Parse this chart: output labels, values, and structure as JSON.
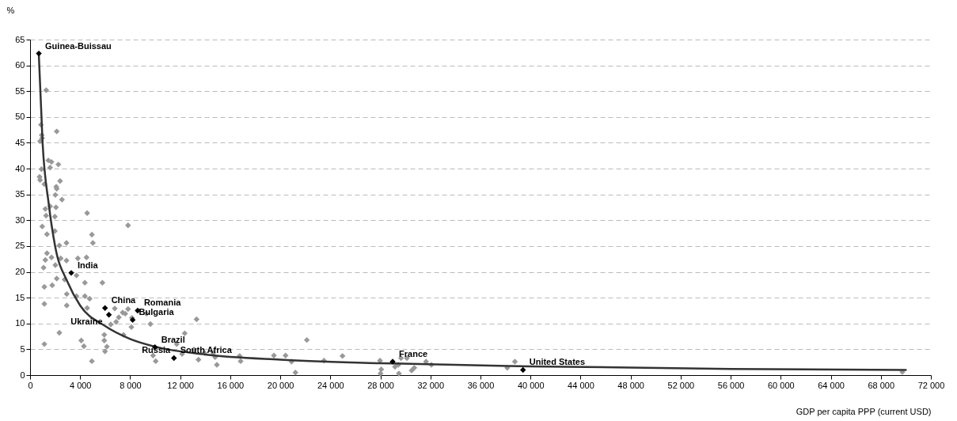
{
  "chart_data": {
    "type": "scatter",
    "xlabel": "GDP per capita PPP (current USD)",
    "ylabel": "%",
    "marker": "diamond",
    "grid": "y",
    "xlim": [
      0,
      72000
    ],
    "xticks": [
      {
        "value": 0,
        "label": "0"
      },
      {
        "value": 4000,
        "label": "4 000"
      },
      {
        "value": 8000,
        "label": "8 000"
      },
      {
        "value": 12000,
        "label": "12 000"
      },
      {
        "value": 16000,
        "label": "16 000"
      },
      {
        "value": 20000,
        "label": "20 000"
      },
      {
        "value": 24000,
        "label": "24 000"
      },
      {
        "value": 28000,
        "label": "28 000"
      },
      {
        "value": 32000,
        "label": "32 000"
      },
      {
        "value": 36000,
        "label": "36 000"
      },
      {
        "value": 40000,
        "label": "40 000"
      },
      {
        "value": 44000,
        "label": "44 000"
      },
      {
        "value": 48000,
        "label": "48 000"
      },
      {
        "value": 52000,
        "label": "52 000"
      },
      {
        "value": 56000,
        "label": "56 000"
      },
      {
        "value": 60000,
        "label": "60 000"
      },
      {
        "value": 64000,
        "label": "64 000"
      },
      {
        "value": 68000,
        "label": "68 000"
      },
      {
        "value": 72000,
        "label": "72 000"
      }
    ],
    "ylim": [
      0,
      65
    ],
    "yticks": [
      0,
      5,
      10,
      15,
      20,
      25,
      30,
      35,
      40,
      45,
      50,
      55,
      60,
      65
    ],
    "series": [
      {
        "color": "#999999",
        "x": [
          1290,
          870,
          2130,
          930,
          970,
          800,
          1460,
          1710,
          2260,
          910,
          1600,
          760,
          800,
          1140,
          2400,
          2090,
          2130,
          2020,
          2550,
          1220,
          1600,
          2070,
          1280,
          1980,
          4560,
          970,
          7830,
          1350,
          1980,
          4940,
          5020,
          2340,
          2910,
          1350,
          1710,
          1220,
          2450,
          2910,
          3820,
          4510,
          1080,
          2020,
          3710,
          1140,
          1770,
          2130,
          2760,
          4380,
          5780,
          2930,
          3710,
          4380,
          4760,
          1140,
          2930,
          4560,
          6770,
          7400,
          7830,
          7610,
          9300,
          7090,
          8140,
          6450,
          6880,
          8100,
          9620,
          2340,
          5930,
          7470,
          5930,
          4090,
          1140,
          4300,
          6140,
          5990,
          9830,
          11720,
          4940,
          10040,
          13310,
          12360,
          12150,
          13100,
          13940,
          14640,
          14790,
          13460,
          14930,
          16750,
          16830,
          19490,
          20420,
          20900,
          21210,
          22120,
          23490,
          24970,
          27970,
          28070,
          28010,
          29170,
          29440,
          29650,
          30120,
          29480,
          30500,
          30710,
          31650,
          32080,
          38140,
          38750,
          69720
        ],
        "values": [
          55.2,
          48.5,
          47.2,
          46.5,
          45.9,
          45.3,
          41.6,
          41.3,
          40.8,
          39.9,
          40.2,
          38.4,
          37.8,
          37.0,
          37.6,
          36.5,
          36.1,
          34.9,
          34.0,
          32.2,
          32.7,
          32.5,
          30.9,
          30.7,
          31.4,
          28.8,
          29.0,
          27.3,
          27.9,
          27.2,
          25.6,
          25.1,
          25.6,
          23.6,
          22.8,
          22.3,
          22.6,
          22.2,
          22.6,
          22.8,
          20.8,
          21.3,
          19.3,
          17.1,
          17.4,
          18.7,
          18.5,
          17.9,
          17.9,
          15.7,
          15.3,
          15.3,
          14.8,
          13.8,
          13.5,
          13.0,
          12.9,
          12.1,
          12.8,
          11.9,
          11.9,
          11.2,
          11.1,
          9.8,
          10.3,
          9.3,
          9.9,
          8.2,
          7.8,
          7.8,
          6.7,
          6.7,
          6.0,
          5.6,
          5.5,
          4.6,
          3.8,
          6.0,
          2.7,
          2.7,
          10.8,
          8.1,
          4.1,
          5.0,
          4.3,
          4.3,
          3.5,
          3.0,
          2.0,
          3.7,
          2.7,
          3.8,
          3.8,
          2.6,
          0.5,
          6.8,
          2.8,
          3.7,
          2.8,
          1.1,
          0.3,
          1.6,
          2.0,
          3.3,
          3.3,
          0.3,
          0.9,
          1.4,
          2.6,
          2.0,
          1.4,
          2.6,
          0.6
        ]
      },
      {
        "type": "line",
        "marker": "none",
        "color": "#333333",
        "x": [
          700,
          1000,
          1500,
          2000,
          3000,
          4000,
          6000,
          8000,
          10000,
          14000,
          20000,
          28000,
          40000,
          56000,
          70000
        ],
        "values": [
          62,
          45,
          33,
          25,
          18,
          13.5,
          9.5,
          7,
          5.5,
          4,
          3,
          2.3,
          1.7,
          1.2,
          1.0
        ]
      },
      {
        "color": "#000000",
        "x": [
          700,
          3290,
          5990,
          6300,
          8600,
          8200,
          9980,
          11500,
          28980,
          39400
        ],
        "values": [
          62.3,
          19.8,
          13.0,
          11.7,
          12.5,
          10.7,
          5.4,
          3.3,
          2.6,
          1.0
        ]
      }
    ],
    "annotations": [
      {
        "text": "Guinea-Buissau",
        "x": 700,
        "y": 62.3
      },
      {
        "text": "India",
        "x": 3290,
        "y": 19.8
      },
      {
        "text": "China",
        "x": 5990,
        "y": 13.0
      },
      {
        "text": "Ukraine",
        "x": 6300,
        "y": 11.7
      },
      {
        "text": "Romania",
        "x": 8600,
        "y": 12.5
      },
      {
        "text": "Bulgaria",
        "x": 8200,
        "y": 10.7
      },
      {
        "text": "Brazil",
        "x": 9980,
        "y": 5.4
      },
      {
        "text": "Russia",
        "x": 11720,
        "y": 6.1
      },
      {
        "text": "South Africa",
        "x": 11500,
        "y": 3.3
      },
      {
        "text": "France",
        "x": 28980,
        "y": 2.6
      },
      {
        "text": "United States",
        "x": 39400,
        "y": 1.0
      }
    ]
  }
}
